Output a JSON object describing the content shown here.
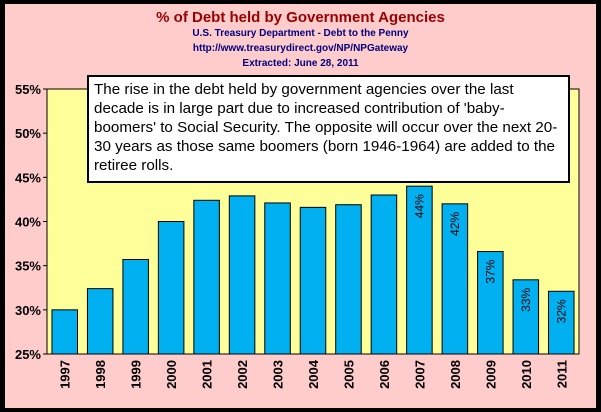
{
  "title": "% of Debt held by Government Agencies",
  "source": {
    "line1": "U.S. Treasury Department - Debt to the Penny",
    "line2": "http://www.treasurydirect.gov/NP/NPGateway",
    "line3": "Extracted: June 28, 2011"
  },
  "annotation": "The rise in the debt held by government agencies over the last decade is in large part due to increased contribution of 'baby-boomers' to Social Security.  The opposite will occur over the next 20-30 years as those same boomers (born 1946-1964) are added to the retiree rolls.",
  "colors": {
    "bar": "#00b0f0",
    "plot_bg": "#ffff99",
    "frame_bg": "#ffcccc",
    "title": "#990000",
    "subtitle": "#000080"
  },
  "chart_data": {
    "type": "bar",
    "categories": [
      "1997",
      "1998",
      "1999",
      "2000",
      "2001",
      "2002",
      "2003",
      "2004",
      "2005",
      "2006",
      "2007",
      "2008",
      "2009",
      "2010",
      "2011"
    ],
    "values": [
      30,
      32.4,
      35.7,
      40,
      42.4,
      42.9,
      42.1,
      41.6,
      41.9,
      43,
      44,
      42,
      36.6,
      33.4,
      32.1
    ],
    "data_labels": [
      "",
      "",
      "",
      "",
      "",
      "",
      "",
      "",
      "",
      "",
      "44%",
      "42%",
      "37%",
      "33%",
      "32%"
    ],
    "yticks": [
      "25%",
      "30%",
      "35%",
      "40%",
      "45%",
      "50%",
      "55%"
    ],
    "ylim": [
      25,
      55
    ],
    "grid": false,
    "legend": "none"
  }
}
